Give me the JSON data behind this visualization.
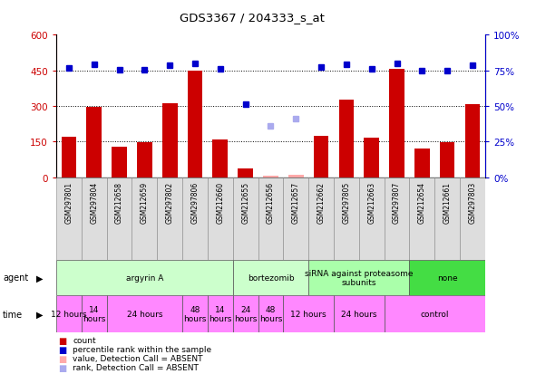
{
  "title": "GDS3367 / 204333_s_at",
  "samples": [
    "GSM297801",
    "GSM297804",
    "GSM212658",
    "GSM212659",
    "GSM297802",
    "GSM297806",
    "GSM212660",
    "GSM212655",
    "GSM212656",
    "GSM212657",
    "GSM212662",
    "GSM297805",
    "GSM212663",
    "GSM297807",
    "GSM212654",
    "GSM212661",
    "GSM297803"
  ],
  "counts": [
    170,
    295,
    130,
    148,
    310,
    448,
    160,
    35,
    8,
    10,
    175,
    325,
    165,
    455,
    120,
    148,
    308
  ],
  "absent_count": [
    false,
    false,
    false,
    false,
    false,
    false,
    false,
    false,
    true,
    true,
    false,
    false,
    false,
    false,
    false,
    false,
    false
  ],
  "ranks": [
    460,
    475,
    452,
    452,
    470,
    480,
    458,
    307,
    215,
    245,
    463,
    475,
    455,
    480,
    449,
    450,
    472
  ],
  "absent_rank": [
    false,
    false,
    false,
    false,
    false,
    false,
    false,
    false,
    true,
    true,
    false,
    false,
    false,
    false,
    false,
    false,
    false
  ],
  "ytick_labels_left": [
    "0",
    "150",
    "300",
    "450",
    "600"
  ],
  "ytick_labels_right": [
    "0%",
    "25%",
    "50%",
    "75%",
    "100%"
  ],
  "bar_color": "#CC0000",
  "absent_bar_color": "#FFAAAA",
  "rank_color": "#0000CC",
  "absent_rank_color": "#AAAAEE",
  "agent_spans": [
    {
      "start": 0,
      "end": 7,
      "label": "argyrin A",
      "color": "#CCFFCC"
    },
    {
      "start": 7,
      "end": 10,
      "label": "bortezomib",
      "color": "#CCFFCC"
    },
    {
      "start": 10,
      "end": 14,
      "label": "siRNA against proteasome\nsubunits",
      "color": "#AAFFAA"
    },
    {
      "start": 14,
      "end": 17,
      "label": "none",
      "color": "#44DD44"
    }
  ],
  "time_spans": [
    {
      "start": 0,
      "end": 1,
      "label": "12 hours",
      "color": "#FF88FF"
    },
    {
      "start": 1,
      "end": 2,
      "label": "14\nhours",
      "color": "#FF88FF"
    },
    {
      "start": 2,
      "end": 5,
      "label": "24 hours",
      "color": "#FF88FF"
    },
    {
      "start": 5,
      "end": 6,
      "label": "48\nhours",
      "color": "#FF88FF"
    },
    {
      "start": 6,
      "end": 7,
      "label": "14\nhours",
      "color": "#FF88FF"
    },
    {
      "start": 7,
      "end": 8,
      "label": "24\nhours",
      "color": "#FF88FF"
    },
    {
      "start": 8,
      "end": 9,
      "label": "48\nhours",
      "color": "#FF88FF"
    },
    {
      "start": 9,
      "end": 11,
      "label": "12 hours",
      "color": "#FF88FF"
    },
    {
      "start": 11,
      "end": 13,
      "label": "24 hours",
      "color": "#FF88FF"
    },
    {
      "start": 13,
      "end": 17,
      "label": "control",
      "color": "#FF88FF"
    }
  ],
  "legend_items": [
    {
      "color": "#CC0000",
      "label": "count"
    },
    {
      "color": "#0000CC",
      "label": "percentile rank within the sample"
    },
    {
      "color": "#FFAAAA",
      "label": "value, Detection Call = ABSENT"
    },
    {
      "color": "#AAAAEE",
      "label": "rank, Detection Call = ABSENT"
    }
  ],
  "dotted_lines": [
    150,
    300,
    450
  ],
  "background_color": "#FFFFFF"
}
